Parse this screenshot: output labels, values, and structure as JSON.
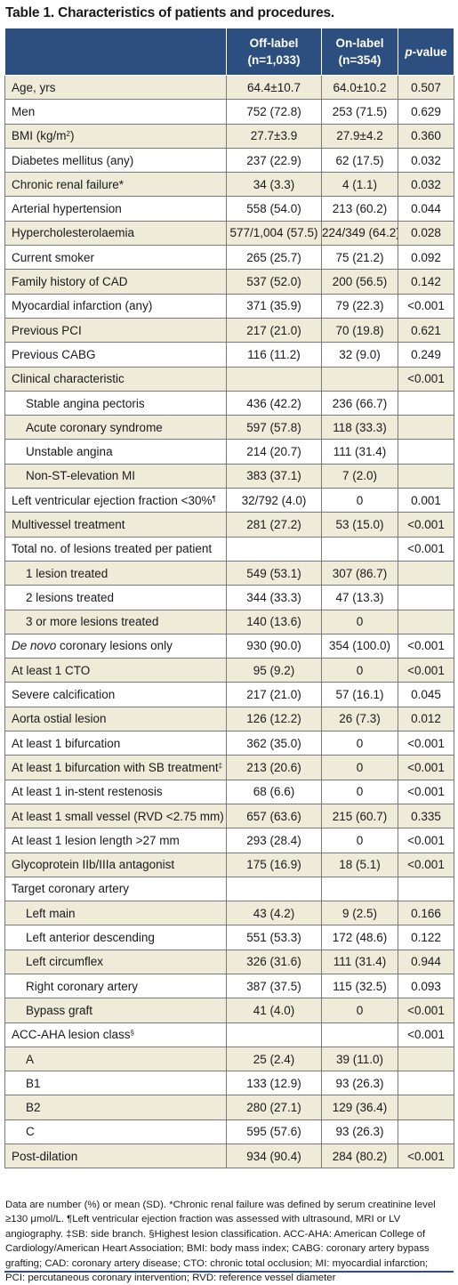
{
  "title": "Table 1. Characteristics of patients and procedures.",
  "header": {
    "col_variable": "",
    "col_off": "Off-label (n=1,033)",
    "col_on": "On-label (n=354)",
    "col_p_italic": "p",
    "col_p_rest": "-value"
  },
  "rows": [
    {
      "label": "Age, yrs",
      "off": "64.4±10.7",
      "on": "64.0±10.2",
      "p": "0.507"
    },
    {
      "label": "Men",
      "off": "752 (72.8)",
      "on": "253 (71.5)",
      "p": "0.629"
    },
    {
      "label": "BMI (kg/m",
      "label_sup": "2",
      "label_after": ")",
      "off": "27.7±3.9",
      "on": "27.9±4.2",
      "p": "0.360"
    },
    {
      "label": "Diabetes mellitus (any)",
      "off": "237 (22.9)",
      "on": "62 (17.5)",
      "p": "0.032"
    },
    {
      "label": "Chronic renal failure*",
      "off": "34 (3.3)",
      "on": "4 (1.1)",
      "p": "0.032"
    },
    {
      "label": "Arterial hypertension",
      "off": "558 (54.0)",
      "on": "213 (60.2)",
      "p": "0.044"
    },
    {
      "label": "Hypercholesterolaemia",
      "off": "577/1,004 (57.5)",
      "on": "224/349 (64.2)",
      "p": "0.028"
    },
    {
      "label": "Current smoker",
      "off": "265 (25.7)",
      "on": "75 (21.2)",
      "p": "0.092"
    },
    {
      "label": "Family history of CAD",
      "off": "537 (52.0)",
      "on": "200 (56.5)",
      "p": "0.142"
    },
    {
      "label": "Myocardial infarction (any)",
      "off": "371 (35.9)",
      "on": "79 (22.3)",
      "p": "<0.001"
    },
    {
      "label": "Previous PCI",
      "off": "217 (21.0)",
      "on": "70 (19.8)",
      "p": "0.621"
    },
    {
      "label": "Previous CABG",
      "off": "116 (11.2)",
      "on": "32 (9.0)",
      "p": "0.249"
    },
    {
      "label": "Clinical characteristic",
      "off": "",
      "on": "",
      "p": "<0.001"
    },
    {
      "label": "Stable angina pectoris",
      "indent": true,
      "off": "436 (42.2)",
      "on": "236 (66.7)",
      "p": ""
    },
    {
      "label": "Acute coronary syndrome",
      "indent": true,
      "off": "597 (57.8)",
      "on": "118 (33.3)",
      "p": ""
    },
    {
      "label": "Unstable angina",
      "indent": true,
      "off": "214 (20.7)",
      "on": "111 (31.4)",
      "p": ""
    },
    {
      "label": "Non-ST-elevation MI",
      "indent": true,
      "off": "383 (37.1)",
      "on": "7 (2.0)",
      "p": ""
    },
    {
      "label": "Left ventricular ejection fraction <30%",
      "label_sup": "¶",
      "off": "32/792 (4.0)",
      "on": "0",
      "p": "0.001"
    },
    {
      "label": "Multivessel treatment",
      "off": "281 (27.2)",
      "on": "53 (15.0)",
      "p": "<0.001"
    },
    {
      "label": "Total no. of lesions treated per patient",
      "off": "",
      "on": "",
      "p": "<0.001"
    },
    {
      "label": "1 lesion treated",
      "indent": true,
      "off": "549 (53.1)",
      "on": "307 (86.7)",
      "p": ""
    },
    {
      "label": "2 lesions treated",
      "indent": true,
      "off": "344 (33.3)",
      "on": "47 (13.3)",
      "p": ""
    },
    {
      "label": "3 or more lesions treated",
      "indent": true,
      "off": "140 (13.6)",
      "on": "0",
      "p": ""
    },
    {
      "label_italic": "De novo",
      "label": " coronary lesions only",
      "off": "930 (90.0)",
      "on": "354 (100.0)",
      "p": "<0.001"
    },
    {
      "label": "At least 1 CTO",
      "off": "95 (9.2)",
      "on": "0",
      "p": "<0.001"
    },
    {
      "label": "Severe calcification",
      "off": "217 (21.0)",
      "on": "57 (16.1)",
      "p": "0.045"
    },
    {
      "label": "Aorta ostial lesion",
      "off": "126 (12.2)",
      "on": "26 (7.3)",
      "p": "0.012"
    },
    {
      "label": "At least 1 bifurcation",
      "off": "362 (35.0)",
      "on": "0",
      "p": "<0.001"
    },
    {
      "label": "At least 1 bifurcation with SB treatment",
      "label_sup": "‡",
      "off": "213 (20.6)",
      "on": "0",
      "p": "<0.001"
    },
    {
      "label": "At least 1 in-stent restenosis",
      "off": "68 (6.6)",
      "on": "0",
      "p": "<0.001"
    },
    {
      "label": "At least 1 small vessel (RVD <2.75 mm)",
      "off": "657 (63.6)",
      "on": "215 (60.7)",
      "p": "0.335"
    },
    {
      "label": "At least 1 lesion length >27 mm",
      "off": "293 (28.4)",
      "on": "0",
      "p": "<0.001"
    },
    {
      "label": "Glycoprotein IIb/IIIa antagonist",
      "off": "175 (16.9)",
      "on": "18 (5.1)",
      "p": "<0.001"
    },
    {
      "label": "Target coronary artery",
      "off": "",
      "on": "",
      "p": ""
    },
    {
      "label": "Left main",
      "indent": true,
      "off": "43 (4.2)",
      "on": "9 (2.5)",
      "p": "0.166"
    },
    {
      "label": "Left anterior descending",
      "indent": true,
      "off": "551 (53.3)",
      "on": "172 (48.6)",
      "p": "0.122"
    },
    {
      "label": "Left circumflex",
      "indent": true,
      "off": "326 (31.6)",
      "on": "111 (31.4)",
      "p": "0.944"
    },
    {
      "label": "Right coronary artery",
      "indent": true,
      "off": "387 (37.5)",
      "on": "115 (32.5)",
      "p": "0.093"
    },
    {
      "label": "Bypass graft",
      "indent": true,
      "off": "41 (4.0)",
      "on": "0",
      "p": "<0.001"
    },
    {
      "label": "ACC-AHA lesion class",
      "label_sup": "§",
      "off": "",
      "on": "",
      "p": "<0.001"
    },
    {
      "label": "A",
      "indent": true,
      "off": "25 (2.4)",
      "on": "39 (11.0)",
      "p": ""
    },
    {
      "label": "B1",
      "indent": true,
      "off": "133 (12.9)",
      "on": "93 (26.3)",
      "p": ""
    },
    {
      "label": "B2",
      "indent": true,
      "off": "280 (27.1)",
      "on": "129 (36.4)",
      "p": ""
    },
    {
      "label": "C",
      "indent": true,
      "off": "595 (57.6)",
      "on": "93 (26.3)",
      "p": ""
    },
    {
      "label": "Post-dilation",
      "off": "934 (90.4)",
      "on": "284 (80.2)",
      "p": "<0.001"
    }
  ],
  "footnote": "Data are number (%) or mean (SD). *Chronic renal failure was defined by serum creatinine level ≥130 μmol/L. ¶Left ventricular ejection fraction was assessed with ultrasound, MRI or LV angiography. ‡SB: side branch. §Highest lesion classification. ACC-AHA: American College of Cardiology/American Heart Association; BMI: body mass index; CABG: coronary artery bypass grafting; CAD: coronary artery disease; CTO: chronic total occlusion; MI: myocardial infarction; PCI: percutaneous coronary intervention; RVD: reference vessel diameter",
  "colors": {
    "header_bg": "#2c4f80",
    "shade_bg": "#eeebd9",
    "plain_bg": "#ffffff"
  }
}
